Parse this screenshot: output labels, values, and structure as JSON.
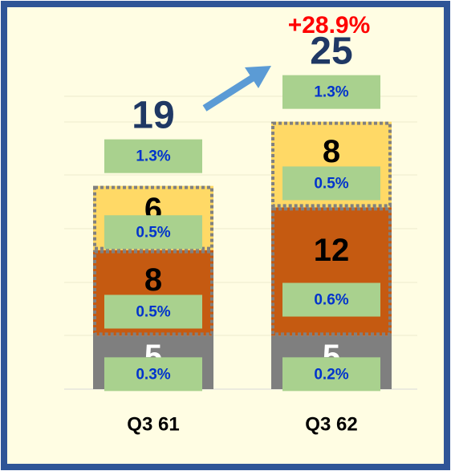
{
  "chart_data": {
    "type": "stacked-bar",
    "categories": [
      "Q3 61",
      "Q3 62"
    ],
    "series": [
      {
        "color": "#7f7f7f",
        "label_color": "#ffffff",
        "outline": false,
        "values": [
          5,
          5
        ],
        "share_labels": [
          "0.3%",
          "0.2%"
        ]
      },
      {
        "color": "#c55a11",
        "label_color": "#000000",
        "outline": true,
        "values": [
          8,
          12
        ],
        "share_labels": [
          "0.5%",
          "0.6%"
        ]
      },
      {
        "color": "#ffd966",
        "label_color": "#000000",
        "outline": true,
        "values": [
          6,
          8
        ],
        "share_labels": [
          "0.5%",
          "0.5%"
        ]
      }
    ],
    "totals": [
      19,
      25
    ],
    "total_share_labels": [
      "1.3%",
      "1.3%"
    ],
    "growth_label": "+28.9%",
    "ylim": [
      0,
      30
    ]
  }
}
